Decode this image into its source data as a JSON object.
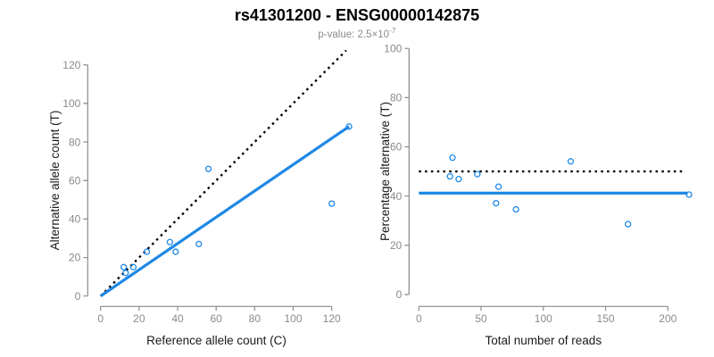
{
  "title": "rs41301200 - ENSG00000142875",
  "subtitle": {
    "text": "p-value: 2.5×10",
    "exponent": "-7"
  },
  "colors": {
    "accent_blue": "#1E88E5",
    "line_black": "#000000",
    "axis_gray": "#8A8A8A",
    "subtitle_gray": "#8A8A8A"
  },
  "chart_data": [
    {
      "type": "scatter",
      "panel": "left",
      "xlabel": "Reference allele count (C)",
      "ylabel": "Alternative allele count (T)",
      "xlim": [
        0,
        130
      ],
      "ylim": [
        0,
        130
      ],
      "xticks": [
        0,
        20,
        40,
        60,
        80,
        100,
        120
      ],
      "yticks": [
        0,
        20,
        40,
        60,
        80,
        100,
        120
      ],
      "grid": false,
      "legend": "none",
      "marker": "open-circle",
      "points": [
        [
          12,
          15
        ],
        [
          13,
          12
        ],
        [
          17,
          15
        ],
        [
          24,
          23
        ],
        [
          36,
          28
        ],
        [
          39,
          23
        ],
        [
          51,
          27
        ],
        [
          56,
          66
        ],
        [
          120,
          48
        ],
        [
          129,
          88
        ]
      ],
      "lines": [
        {
          "name": "identity-line",
          "style": "dotted",
          "color": "#000000",
          "from": [
            0,
            0
          ],
          "to": [
            127.5,
            127.5
          ]
        },
        {
          "name": "fit-line",
          "style": "solid",
          "color": "#1E88E5",
          "from": [
            0,
            0
          ],
          "to": [
            129,
            88
          ]
        }
      ]
    },
    {
      "type": "scatter",
      "panel": "right",
      "xlabel": "Total number of reads",
      "ylabel": "Percentage alternative (T)",
      "xlim": [
        0,
        220
      ],
      "ylim": [
        0,
        100
      ],
      "xticks": [
        0,
        50,
        100,
        150,
        200
      ],
      "yticks": [
        0,
        20,
        40,
        60,
        80,
        100
      ],
      "grid": false,
      "legend": "none",
      "marker": "open-circle",
      "points": [
        [
          27,
          55.6
        ],
        [
          25,
          48
        ],
        [
          32,
          46.9
        ],
        [
          47,
          48.9
        ],
        [
          64,
          43.8
        ],
        [
          62,
          37.1
        ],
        [
          78,
          34.6
        ],
        [
          122,
          54.1
        ],
        [
          168,
          28.6
        ],
        [
          217,
          40.6
        ]
      ],
      "lines": [
        {
          "name": "fifty-percent-line",
          "style": "dotted",
          "color": "#000000",
          "from": [
            0,
            50
          ],
          "to": [
            213,
            50
          ]
        },
        {
          "name": "fit-line",
          "style": "solid",
          "color": "#1E88E5",
          "from": [
            0,
            41.2
          ],
          "to": [
            216,
            41.2
          ]
        }
      ]
    }
  ]
}
